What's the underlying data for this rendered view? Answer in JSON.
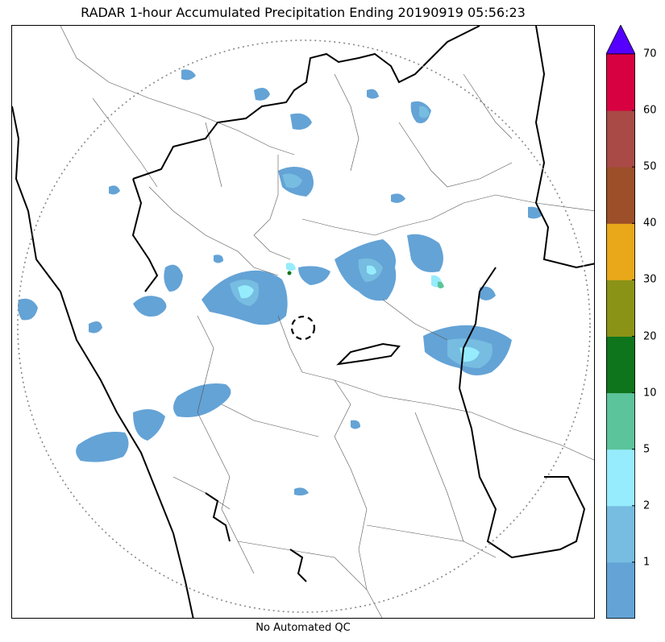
{
  "title": "RADAR 1-hour Accumulated Precipitation Ending 20190919 05:56:23",
  "footer_note": "No Automated QC",
  "colorbar": {
    "extend_max_color": "#5500ff",
    "bands": [
      {
        "from": 0,
        "to": 1,
        "color": "#64a3d6"
      },
      {
        "from": 1,
        "to": 2,
        "color": "#76bde1"
      },
      {
        "from": 2,
        "to": 5,
        "color": "#96ecfd"
      },
      {
        "from": 5,
        "to": 10,
        "color": "#5cc49a"
      },
      {
        "from": 10,
        "to": 20,
        "color": "#0e751c"
      },
      {
        "from": 20,
        "to": 30,
        "color": "#8b9317"
      },
      {
        "from": 30,
        "to": 40,
        "color": "#e8a81a"
      },
      {
        "from": 40,
        "to": 50,
        "color": "#9d4f29"
      },
      {
        "from": 50,
        "to": 60,
        "color": "#a94a46"
      },
      {
        "from": 60,
        "to": 70,
        "color": "#d70041"
      }
    ],
    "tick_labels": [
      "1",
      "2",
      "5",
      "10",
      "20",
      "30",
      "40",
      "50",
      "60",
      "70"
    ]
  },
  "map": {
    "range_ring_style": "dotted",
    "radar_site_marker": "dashed circle",
    "colors": {
      "state_border": "#000000",
      "district_border": "#555555",
      "range_ring": "#888888"
    }
  }
}
